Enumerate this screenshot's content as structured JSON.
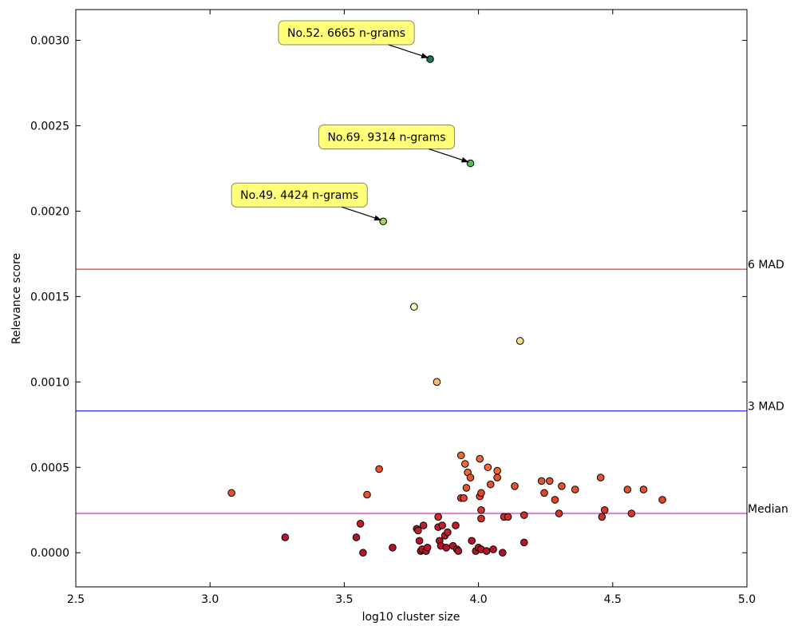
{
  "chart_data": {
    "type": "scatter",
    "title": "",
    "xlabel": "log10 cluster size",
    "ylabel": "Relevance score",
    "xlim": [
      2.5,
      5.0
    ],
    "ylim": [
      -0.0002,
      0.00318
    ],
    "grid": false,
    "xticks": [
      2.5,
      3.0,
      3.5,
      4.0,
      4.5,
      5.0
    ],
    "xtick_labels": [
      "2.5",
      "3.0",
      "3.5",
      "4.0",
      "4.5",
      "5.0"
    ],
    "yticks": [
      0.0,
      0.0005,
      0.001,
      0.0015,
      0.002,
      0.0025,
      0.003
    ],
    "ytick_labels": [
      "0.0000",
      "0.0005",
      "0.0010",
      "0.0015",
      "0.0020",
      "0.0025",
      "0.0030"
    ],
    "reference_lines": [
      {
        "label": "6 MAD",
        "y": 0.00166,
        "color": "#e8473a"
      },
      {
        "label": "3 MAD",
        "y": 0.00083,
        "color": "#1a1aff"
      },
      {
        "label": "Median",
        "y": 0.00023,
        "color": "#cc33cc"
      }
    ],
    "annotations": [
      {
        "text": "No.52. 6665 n-grams",
        "x": 3.82,
        "y": 0.00289
      },
      {
        "text": "No.69. 9314 n-grams",
        "x": 3.97,
        "y": 0.00228
      },
      {
        "text": "No.49. 4424 n-grams",
        "x": 3.645,
        "y": 0.00194
      }
    ],
    "points": [
      {
        "x": 3.82,
        "y": 0.00289,
        "color": "#1a7a4c"
      },
      {
        "x": 3.97,
        "y": 0.00228,
        "color": "#5cb85c"
      },
      {
        "x": 3.645,
        "y": 0.00194,
        "color": "#9ed55e"
      },
      {
        "x": 3.76,
        "y": 0.00144,
        "color": "#fdfdc0"
      },
      {
        "x": 4.155,
        "y": 0.00124,
        "color": "#fde08a"
      },
      {
        "x": 3.845,
        "y": 0.001,
        "color": "#fdc06a"
      },
      {
        "x": 3.08,
        "y": 0.00035,
        "color": "#e5532d"
      },
      {
        "x": 3.28,
        "y": 9e-05,
        "color": "#b5142a"
      },
      {
        "x": 3.545,
        "y": 9e-05,
        "color": "#b5142a"
      },
      {
        "x": 3.56,
        "y": 0.00017,
        "color": "#c0202a"
      },
      {
        "x": 3.57,
        "y": 0.0,
        "color": "#b5142a"
      },
      {
        "x": 3.585,
        "y": 0.00034,
        "color": "#e5532d"
      },
      {
        "x": 3.63,
        "y": 0.00049,
        "color": "#e5532d"
      },
      {
        "x": 3.68,
        "y": 3e-05,
        "color": "#b5142a"
      },
      {
        "x": 3.77,
        "y": 0.00014,
        "color": "#c0202a"
      },
      {
        "x": 3.775,
        "y": 0.00013,
        "color": "#c0202a"
      },
      {
        "x": 3.78,
        "y": 7e-05,
        "color": "#b5142a"
      },
      {
        "x": 3.785,
        "y": 1e-05,
        "color": "#b5142a"
      },
      {
        "x": 3.79,
        "y": 2e-05,
        "color": "#b5142a"
      },
      {
        "x": 3.795,
        "y": 0.00016,
        "color": "#c0202a"
      },
      {
        "x": 3.805,
        "y": 1e-05,
        "color": "#b5142a"
      },
      {
        "x": 3.81,
        "y": 3e-05,
        "color": "#b5142a"
      },
      {
        "x": 3.85,
        "y": 0.00021,
        "color": "#cf2f2a"
      },
      {
        "x": 3.85,
        "y": 0.00015,
        "color": "#c0202a"
      },
      {
        "x": 3.855,
        "y": 7e-05,
        "color": "#b5142a"
      },
      {
        "x": 3.86,
        "y": 4e-05,
        "color": "#b5142a"
      },
      {
        "x": 3.865,
        "y": 0.00016,
        "color": "#c0202a"
      },
      {
        "x": 3.875,
        "y": 0.0001,
        "color": "#b5142a"
      },
      {
        "x": 3.88,
        "y": 3e-05,
        "color": "#b5142a"
      },
      {
        "x": 3.885,
        "y": 0.00012,
        "color": "#c0202a"
      },
      {
        "x": 3.905,
        "y": 4e-05,
        "color": "#b5142a"
      },
      {
        "x": 3.915,
        "y": 0.00016,
        "color": "#c0202a"
      },
      {
        "x": 3.92,
        "y": 2e-05,
        "color": "#b5142a"
      },
      {
        "x": 3.925,
        "y": 1e-05,
        "color": "#b5142a"
      },
      {
        "x": 3.935,
        "y": 0.00057,
        "color": "#ee6a35"
      },
      {
        "x": 3.935,
        "y": 0.00032,
        "color": "#e0452c"
      },
      {
        "x": 3.945,
        "y": 0.00032,
        "color": "#e0452c"
      },
      {
        "x": 3.95,
        "y": 0.00052,
        "color": "#ee6a35"
      },
      {
        "x": 3.955,
        "y": 0.00038,
        "color": "#e5532d"
      },
      {
        "x": 3.96,
        "y": 0.00047,
        "color": "#ee6a35"
      },
      {
        "x": 3.97,
        "y": 0.00044,
        "color": "#e5532d"
      },
      {
        "x": 3.975,
        "y": 7e-05,
        "color": "#b5142a"
      },
      {
        "x": 3.99,
        "y": 1e-05,
        "color": "#b5142a"
      },
      {
        "x": 4.0,
        "y": 3e-05,
        "color": "#b5142a"
      },
      {
        "x": 4.005,
        "y": 0.00055,
        "color": "#ee6a35"
      },
      {
        "x": 4.005,
        "y": 0.00033,
        "color": "#e0452c"
      },
      {
        "x": 4.01,
        "y": 0.00035,
        "color": "#e0452c"
      },
      {
        "x": 4.01,
        "y": 0.00025,
        "color": "#d6352b"
      },
      {
        "x": 4.01,
        "y": 0.0002,
        "color": "#cf2f2a"
      },
      {
        "x": 4.01,
        "y": 2e-05,
        "color": "#b5142a"
      },
      {
        "x": 4.03,
        "y": 1e-05,
        "color": "#b5142a"
      },
      {
        "x": 4.035,
        "y": 0.0005,
        "color": "#ee6a35"
      },
      {
        "x": 4.045,
        "y": 0.0004,
        "color": "#e5532d"
      },
      {
        "x": 4.055,
        "y": 2e-05,
        "color": "#b5142a"
      },
      {
        "x": 4.07,
        "y": 0.00048,
        "color": "#ee6a35"
      },
      {
        "x": 4.07,
        "y": 0.00044,
        "color": "#e5532d"
      },
      {
        "x": 4.09,
        "y": 0.0,
        "color": "#b5142a"
      },
      {
        "x": 4.095,
        "y": 0.00021,
        "color": "#cf2f2a"
      },
      {
        "x": 4.11,
        "y": 0.00021,
        "color": "#cf2f2a"
      },
      {
        "x": 4.135,
        "y": 0.00039,
        "color": "#e5532d"
      },
      {
        "x": 4.17,
        "y": 0.00022,
        "color": "#cf2f2a"
      },
      {
        "x": 4.17,
        "y": 6e-05,
        "color": "#b5142a"
      },
      {
        "x": 4.235,
        "y": 0.00042,
        "color": "#e5532d"
      },
      {
        "x": 4.245,
        "y": 0.00035,
        "color": "#e0452c"
      },
      {
        "x": 4.265,
        "y": 0.00042,
        "color": "#e5532d"
      },
      {
        "x": 4.285,
        "y": 0.00031,
        "color": "#e0452c"
      },
      {
        "x": 4.3,
        "y": 0.00023,
        "color": "#d6352b"
      },
      {
        "x": 4.31,
        "y": 0.00039,
        "color": "#e5532d"
      },
      {
        "x": 4.36,
        "y": 0.00037,
        "color": "#e5532d"
      },
      {
        "x": 4.455,
        "y": 0.00044,
        "color": "#e5532d"
      },
      {
        "x": 4.46,
        "y": 0.00021,
        "color": "#cf2f2a"
      },
      {
        "x": 4.47,
        "y": 0.00025,
        "color": "#d6352b"
      },
      {
        "x": 4.555,
        "y": 0.00037,
        "color": "#e5532d"
      },
      {
        "x": 4.57,
        "y": 0.00023,
        "color": "#d6352b"
      },
      {
        "x": 4.615,
        "y": 0.00037,
        "color": "#e5532d"
      },
      {
        "x": 4.685,
        "y": 0.00031,
        "color": "#e0452c"
      }
    ]
  }
}
